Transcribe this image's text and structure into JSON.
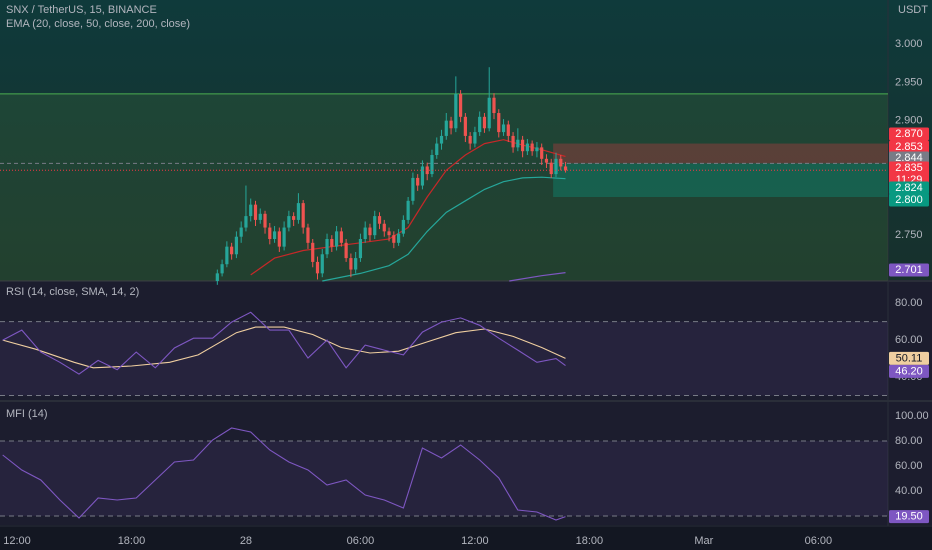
{
  "chart_data": [
    {
      "type": "candlestick",
      "title": "SNX / TetherUS, 15, BINANCE",
      "subtitle": "EMA (20, close, 50, close, 200, close)",
      "unit": "USDT",
      "xlim": [
        -0.89,
        45.65
      ],
      "xticks": [
        {
          "value": 0,
          "label": "12:00"
        },
        {
          "value": 6,
          "label": "18:00"
        },
        {
          "value": 12,
          "label": "28"
        },
        {
          "value": 18,
          "label": "06:00"
        },
        {
          "value": 24,
          "label": "12:00"
        },
        {
          "value": 30,
          "label": "18:00"
        },
        {
          "value": 36,
          "label": "Mar"
        },
        {
          "value": 42,
          "label": "06:00"
        }
      ],
      "ylim": [
        2.69,
        3.058
      ],
      "yticks": [
        {
          "value": 3,
          "label": "3.000"
        },
        {
          "value": 2.95,
          "label": "2.950"
        },
        {
          "value": 2.9,
          "label": "2.900"
        },
        {
          "value": 2.75,
          "label": "2.750"
        }
      ],
      "up_color": "#26a69a",
      "down_color": "#ef5350",
      "x": [
        10.5,
        10.75,
        11,
        11.25,
        11.5,
        11.75,
        12,
        12.25,
        12.5,
        12.75,
        13,
        13.25,
        13.5,
        13.75,
        14,
        14.25,
        14.5,
        14.75,
        15,
        15.25,
        15.5,
        15.75,
        16,
        16.25,
        16.5,
        16.75,
        17,
        17.25,
        17.5,
        17.75,
        18,
        18.25,
        18.5,
        18.75,
        19,
        19.25,
        19.5,
        19.75,
        20,
        20.25,
        20.5,
        20.75,
        21,
        21.25,
        21.5,
        21.75,
        22,
        22.25,
        22.5,
        22.75,
        23,
        23.25,
        23.5,
        23.75,
        24,
        24.25,
        24.5,
        24.75,
        25,
        25.25,
        25.5,
        25.75,
        26,
        26.25,
        26.5,
        26.75,
        27,
        27.25,
        27.5,
        27.75,
        28,
        28.25,
        28.5,
        28.75
      ],
      "ohlc": [
        [
          2.69,
          2.705,
          2.685,
          2.7
        ],
        [
          2.7,
          2.718,
          2.696,
          2.712
        ],
        [
          2.712,
          2.742,
          2.708,
          2.735
        ],
        [
          2.735,
          2.74,
          2.718,
          2.725
        ],
        [
          2.725,
          2.755,
          2.72,
          2.748
        ],
        [
          2.748,
          2.768,
          2.74,
          2.76
        ],
        [
          2.76,
          2.815,
          2.755,
          2.775
        ],
        [
          2.775,
          2.798,
          2.768,
          2.79
        ],
        [
          2.79,
          2.795,
          2.762,
          2.77
        ],
        [
          2.77,
          2.785,
          2.765,
          2.778
        ],
        [
          2.778,
          2.782,
          2.752,
          2.76
        ],
        [
          2.76,
          2.766,
          2.738,
          2.745
        ],
        [
          2.745,
          2.762,
          2.74,
          2.755
        ],
        [
          2.755,
          2.76,
          2.728,
          2.735
        ],
        [
          2.735,
          2.768,
          2.73,
          2.76
        ],
        [
          2.76,
          2.782,
          2.755,
          2.775
        ],
        [
          2.775,
          2.78,
          2.762,
          2.77
        ],
        [
          2.77,
          2.805,
          2.765,
          2.792
        ],
        [
          2.792,
          2.796,
          2.752,
          2.76
        ],
        [
          2.76,
          2.765,
          2.732,
          2.74
        ],
        [
          2.74,
          2.745,
          2.708,
          2.715
        ],
        [
          2.715,
          2.722,
          2.692,
          2.7
        ],
        [
          2.7,
          2.732,
          2.695,
          2.725
        ],
        [
          2.725,
          2.752,
          2.72,
          2.745
        ],
        [
          2.745,
          2.75,
          2.728,
          2.735
        ],
        [
          2.735,
          2.762,
          2.73,
          2.755
        ],
        [
          2.755,
          2.76,
          2.735,
          2.74
        ],
        [
          2.74,
          2.745,
          2.715,
          2.72
        ],
        [
          2.72,
          2.726,
          2.695,
          2.705
        ],
        [
          2.705,
          2.728,
          2.7,
          2.72
        ],
        [
          2.72,
          2.752,
          2.715,
          2.745
        ],
        [
          2.745,
          2.768,
          2.74,
          2.76
        ],
        [
          2.76,
          2.765,
          2.742,
          2.75
        ],
        [
          2.75,
          2.782,
          2.745,
          2.775
        ],
        [
          2.775,
          2.78,
          2.758,
          2.765
        ],
        [
          2.765,
          2.77,
          2.748,
          2.755
        ],
        [
          2.755,
          2.76,
          2.742,
          2.75
        ],
        [
          2.75,
          2.755,
          2.733,
          2.74
        ],
        [
          2.74,
          2.758,
          2.736,
          2.752
        ],
        [
          2.752,
          2.776,
          2.748,
          2.77
        ],
        [
          2.77,
          2.8,
          2.765,
          2.795
        ],
        [
          2.795,
          2.832,
          2.79,
          2.825
        ],
        [
          2.825,
          2.83,
          2.808,
          2.815
        ],
        [
          2.815,
          2.848,
          2.81,
          2.84
        ],
        [
          2.84,
          2.845,
          2.822,
          2.83
        ],
        [
          2.83,
          2.862,
          2.826,
          2.855
        ],
        [
          2.855,
          2.878,
          2.85,
          2.87
        ],
        [
          2.87,
          2.888,
          2.862,
          2.88
        ],
        [
          2.88,
          2.91,
          2.875,
          2.9
        ],
        [
          2.9,
          2.905,
          2.882,
          2.89
        ],
        [
          2.89,
          2.958,
          2.885,
          2.935
        ],
        [
          2.935,
          2.94,
          2.898,
          2.905
        ],
        [
          2.905,
          2.91,
          2.872,
          2.88
        ],
        [
          2.88,
          2.885,
          2.862,
          2.87
        ],
        [
          2.87,
          2.892,
          2.865,
          2.885
        ],
        [
          2.885,
          2.912,
          2.88,
          2.905
        ],
        [
          2.905,
          2.91,
          2.884,
          2.89
        ],
        [
          2.89,
          2.97,
          2.886,
          2.93
        ],
        [
          2.93,
          2.936,
          2.902,
          2.91
        ],
        [
          2.91,
          2.915,
          2.878,
          2.885
        ],
        [
          2.885,
          2.902,
          2.88,
          2.895
        ],
        [
          2.895,
          2.9,
          2.872,
          2.88
        ],
        [
          2.88,
          2.885,
          2.858,
          2.865
        ],
        [
          2.865,
          2.89,
          2.86,
          2.875
        ],
        [
          2.875,
          2.88,
          2.852,
          2.86
        ],
        [
          2.86,
          2.876,
          2.855,
          2.87
        ],
        [
          2.87,
          2.874,
          2.854,
          2.86
        ],
        [
          2.86,
          2.872,
          2.852,
          2.865
        ],
        [
          2.865,
          2.87,
          2.842,
          2.85
        ],
        [
          2.85,
          2.856,
          2.838,
          2.845
        ],
        [
          2.845,
          2.85,
          2.825,
          2.83
        ],
        [
          2.83,
          2.858,
          2.826,
          2.85
        ],
        [
          2.85,
          2.855,
          2.835,
          2.84
        ],
        [
          2.84,
          2.846,
          2.832,
          2.835
        ]
      ],
      "close_label": "2.835",
      "close_color": "#f23645",
      "countdown": "11:29",
      "hline": 2.935,
      "hline_color": "#4caf50",
      "position": {
        "start": 28.1,
        "stop": 2.87,
        "stop_label": "2.870",
        "entry": 2.844,
        "entry_label": "2.844",
        "target": 2.8,
        "target_label": "2.800"
      },
      "ema": [
        {
          "color": "#c62828",
          "x": [
            12.25,
            13.5,
            15,
            16.5,
            18,
            19.5,
            20.5,
            21.5,
            22.5,
            23.5,
            24.5,
            25.5,
            26.5,
            27.5,
            28.75
          ],
          "values": [
            2.698,
            2.72,
            2.73,
            2.735,
            2.74,
            2.745,
            2.76,
            2.8,
            2.835,
            2.855,
            2.87,
            2.875,
            2.868,
            2.862,
            2.853
          ],
          "last_label": "2.853"
        },
        {
          "color": "#26a69a",
          "x": [
            16,
            18,
            19.5,
            20.5,
            21.5,
            22.5,
            23.5,
            24.5,
            25.5,
            26.5,
            27.5,
            28.75
          ],
          "values": [
            2.69,
            2.7,
            2.71,
            2.725,
            2.755,
            2.78,
            2.795,
            2.81,
            2.82,
            2.825,
            2.826,
            2.824
          ],
          "last_label": "2.824"
        },
        {
          "color": "#7e57c2",
          "x": [
            25.8,
            27.5,
            28.75
          ],
          "values": [
            2.69,
            2.697,
            2.701
          ],
          "last_label": "2.701"
        }
      ]
    },
    {
      "type": "line",
      "title": "RSI (14, close, SMA, 14, 2)",
      "ylim": [
        27.6,
        91.4
      ],
      "yticks": [
        {
          "value": 80,
          "label": "80.00"
        },
        {
          "value": 60,
          "label": "60.00"
        },
        {
          "value": 40,
          "label": "40.00"
        }
      ],
      "bands": [
        70,
        30
      ],
      "series": [
        {
          "color": "#f0cfa0",
          "x": [
            -0.75,
            1,
            3,
            4,
            6,
            8,
            9.5,
            10.5,
            11.5,
            12.5,
            14,
            15.5,
            17,
            18.5,
            20,
            21.5,
            23,
            24.5,
            26,
            27.5,
            28.75
          ],
          "values": [
            60,
            55,
            48,
            45,
            46,
            48,
            52,
            58,
            64,
            67,
            67,
            63,
            56,
            53,
            54,
            59,
            64,
            66,
            62,
            56,
            50.11
          ],
          "last_label": "50.11"
        },
        {
          "color": "#7e57c2",
          "x": [
            -0.75,
            0.25,
            1.25,
            2.25,
            3.25,
            4.25,
            5.25,
            6.25,
            7.25,
            8.25,
            9.25,
            10.25,
            11.25,
            12.25,
            13.25,
            14.25,
            15.25,
            16.25,
            17.25,
            18.25,
            19.25,
            20.25,
            21.25,
            22.25,
            23.25,
            24.25,
            25.25,
            26.25,
            27.25,
            28.25,
            28.75
          ],
          "values": [
            60,
            65.4,
            53.5,
            48,
            41.6,
            49,
            44,
            53.5,
            45,
            55.7,
            61,
            61,
            69.7,
            75,
            65.4,
            65.4,
            50.3,
            60,
            45,
            57.3,
            54.6,
            52,
            64.3,
            69.7,
            72,
            68,
            61,
            54.6,
            48,
            50,
            46.2
          ],
          "last_label": "46.20"
        }
      ]
    },
    {
      "type": "line",
      "title": "MFI (14)",
      "ylim": [
        12.8,
        111.2
      ],
      "yticks": [
        {
          "value": 100,
          "label": "100.00"
        },
        {
          "value": 80,
          "label": "80.00"
        },
        {
          "value": 60,
          "label": "60.00"
        },
        {
          "value": 40,
          "label": "40.00"
        }
      ],
      "bands": [
        80,
        20
      ],
      "series": [
        {
          "color": "#7e57c2",
          "x": [
            -0.75,
            0.25,
            1.25,
            2.25,
            3.25,
            4.25,
            5.25,
            6.25,
            7.25,
            8.25,
            9.25,
            10.25,
            11.25,
            12.25,
            13.25,
            14.25,
            15.25,
            16.25,
            17.25,
            18.25,
            19.25,
            20.25,
            21.25,
            22.25,
            23.25,
            24.25,
            25.25,
            26.25,
            27.25,
            28.25,
            28.75
          ],
          "values": [
            68.8,
            56.8,
            48.8,
            32.8,
            18.4,
            34.4,
            32.8,
            34.4,
            48.8,
            63.2,
            64.8,
            80.8,
            90.4,
            87.2,
            72.8,
            63.2,
            56.8,
            44.8,
            48.8,
            36.8,
            32.8,
            26.4,
            74.4,
            66.4,
            76.8,
            64.8,
            50.4,
            24.8,
            23.2,
            16.8,
            19.5
          ],
          "last_label": "19.50"
        }
      ]
    }
  ]
}
